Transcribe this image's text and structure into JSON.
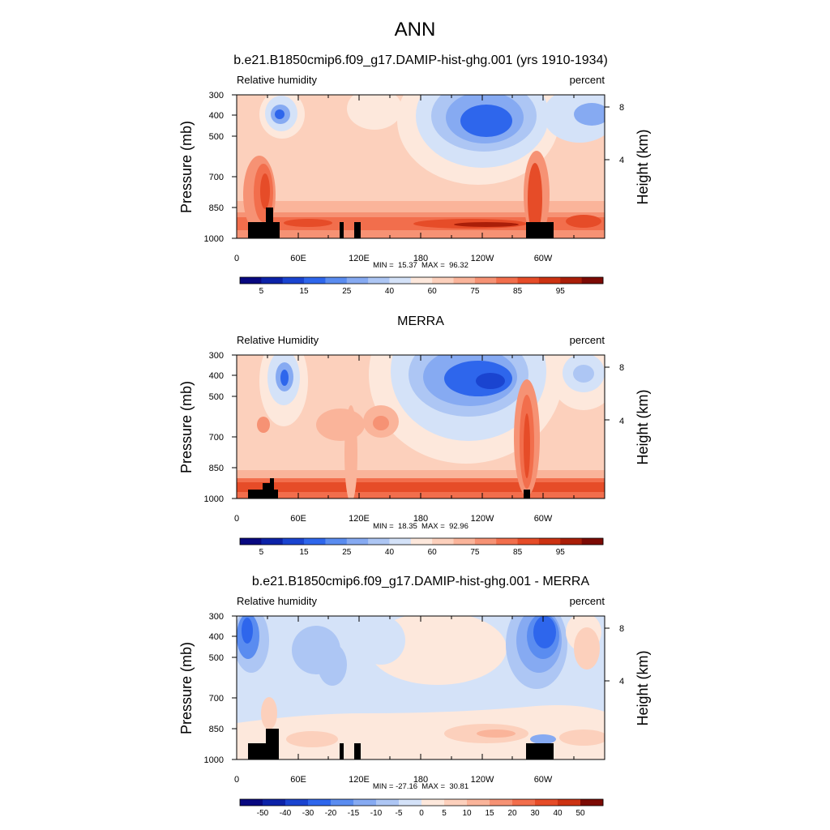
{
  "figure_title": "ANN",
  "chart_data": [
    {
      "type": "heatmap",
      "title": "b.e21.B1850cmip6.f09_g17.DAMIP-hist-ghg.001 (yrs 1910-1934)",
      "left_label": "Relative humidity",
      "right_label": "percent",
      "ylabel": "Pressure (mb)",
      "ylabel_right": "Height (km)",
      "x_ticks": [
        "0",
        "60E",
        "120E",
        "180",
        "120W",
        "60W"
      ],
      "y_ticks": [
        "300",
        "400",
        "500",
        "700",
        "850",
        "1000"
      ],
      "y_ticks_right": [
        "8",
        "4"
      ],
      "min_max": "MIN =  15.37  MAX =  96.32",
      "min": 15.37,
      "max": 96.32,
      "colorbar_labels": [
        "5",
        "15",
        "25",
        "40",
        "60",
        "75",
        "85",
        "95"
      ],
      "colorbar_colors": [
        "#080880",
        "#0c22a8",
        "#1a44d0",
        "#2e66ec",
        "#5a8cf0",
        "#86aaf2",
        "#adc6f4",
        "#d4e2f8",
        "#fde8dc",
        "#fcd0bc",
        "#fab49a",
        "#f69274",
        "#f26e4c",
        "#e64c28",
        "#cc3212",
        "#aa1e08",
        "#7c0a04"
      ]
    },
    {
      "type": "heatmap",
      "title": "MERRA",
      "left_label": "Relative Humidity",
      "right_label": "percent",
      "ylabel": "Pressure (mb)",
      "ylabel_right": "Height (km)",
      "x_ticks": [
        "0",
        "60E",
        "120E",
        "180",
        "120W",
        "60W"
      ],
      "y_ticks": [
        "300",
        "400",
        "500",
        "700",
        "850",
        "1000"
      ],
      "y_ticks_right": [
        "8",
        "4"
      ],
      "min_max": "MIN =  18.35  MAX =  92.96",
      "min": 18.35,
      "max": 92.96,
      "colorbar_labels": [
        "5",
        "15",
        "25",
        "40",
        "60",
        "75",
        "85",
        "95"
      ],
      "colorbar_colors": [
        "#080880",
        "#0c22a8",
        "#1a44d0",
        "#2e66ec",
        "#5a8cf0",
        "#86aaf2",
        "#adc6f4",
        "#d4e2f8",
        "#fde8dc",
        "#fcd0bc",
        "#fab49a",
        "#f69274",
        "#f26e4c",
        "#e64c28",
        "#cc3212",
        "#aa1e08",
        "#7c0a04"
      ]
    },
    {
      "type": "heatmap",
      "title": "b.e21.B1850cmip6.f09_g17.DAMIP-hist-ghg.001 - MERRA",
      "left_label": "Relative humidity",
      "right_label": "percent",
      "ylabel": "Pressure (mb)",
      "ylabel_right": "Height (km)",
      "x_ticks": [
        "0",
        "60E",
        "120E",
        "180",
        "120W",
        "60W"
      ],
      "y_ticks": [
        "300",
        "400",
        "500",
        "700",
        "850",
        "1000"
      ],
      "y_ticks_right": [
        "8",
        "4"
      ],
      "min_max": "MIN = -27.16  MAX =  30.81",
      "min": -27.16,
      "max": 30.81,
      "colorbar_labels": [
        "-50",
        "-40",
        "-30",
        "-20",
        "-15",
        "-10",
        "-5",
        "0",
        "5",
        "10",
        "15",
        "20",
        "30",
        "40",
        "50"
      ],
      "colorbar_colors": [
        "#080880",
        "#0c22a8",
        "#1a44d0",
        "#2e66ec",
        "#5a8cf0",
        "#86aaf2",
        "#adc6f4",
        "#d4e2f8",
        "#fde8dc",
        "#fcd0bc",
        "#fab49a",
        "#f69274",
        "#f26e4c",
        "#e64c28",
        "#cc3212",
        "#7c0a04"
      ]
    }
  ]
}
